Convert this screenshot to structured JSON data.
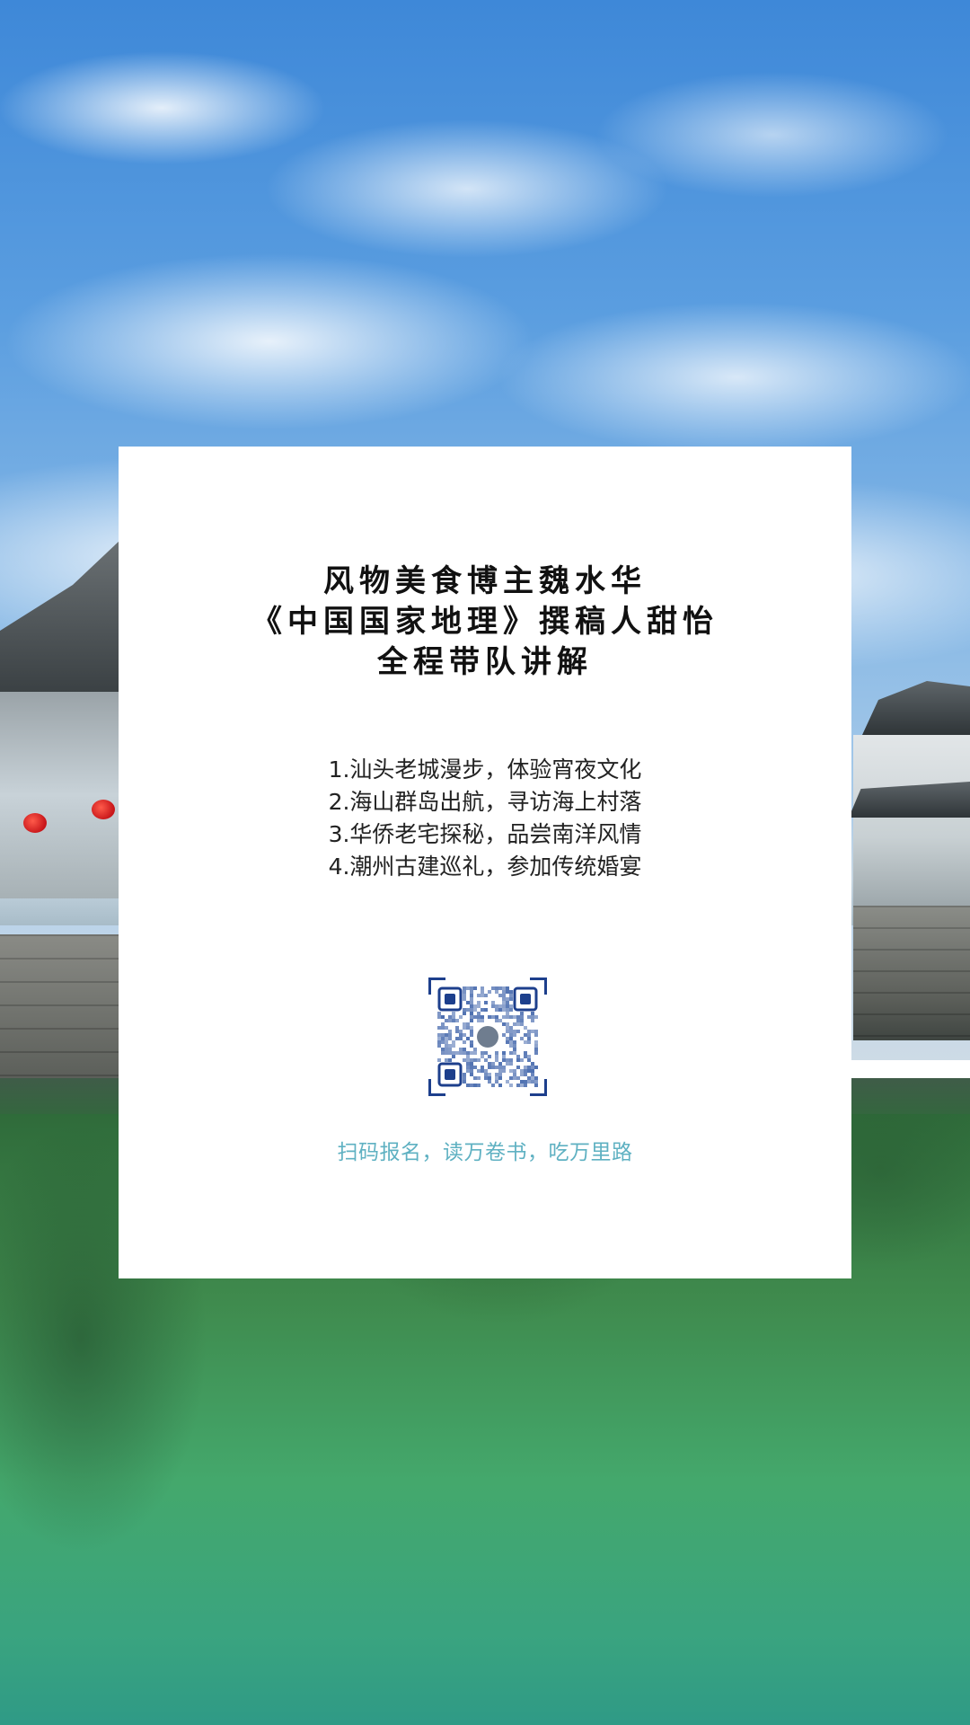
{
  "card": {
    "headline": [
      "风物美食博主魏水华",
      "《中国国家地理》撰稿人甜怡",
      "全程带队讲解"
    ],
    "itinerary": [
      "1.汕头老城漫步，体验宵夜文化",
      "2.海山群岛出航，寻访海上村落",
      "3.华侨老宅探秘，品尝南洋风情",
      "4.潮州古建巡礼，参加传统婚宴"
    ],
    "tagline": "扫码报名，读万卷书，吃万里路"
  },
  "colors": {
    "card_bg": "#ffffff",
    "headline": "#111111",
    "body_text": "#222222",
    "tagline": "#5fb1c2",
    "qr_frame": "#1d3f8c",
    "qr_modules": "#4d6fb0"
  },
  "icons": {
    "qr": "qr-code-icon"
  }
}
